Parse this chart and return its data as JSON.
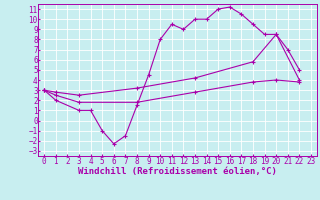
{
  "bg_color": "#c8eef0",
  "line_color": "#aa00aa",
  "xlim": [
    -0.5,
    23.5
  ],
  "ylim": [
    -3.5,
    11.5
  ],
  "xticks": [
    0,
    1,
    2,
    3,
    4,
    5,
    6,
    7,
    8,
    9,
    10,
    11,
    12,
    13,
    14,
    15,
    16,
    17,
    18,
    19,
    20,
    21,
    22,
    23
  ],
  "yticks": [
    -3,
    -2,
    -1,
    0,
    1,
    2,
    3,
    4,
    5,
    6,
    7,
    8,
    9,
    10,
    11
  ],
  "line1_x": [
    0,
    1,
    3,
    4,
    5,
    6,
    7,
    8,
    9,
    10,
    11,
    12,
    13,
    14,
    15,
    16,
    17,
    18,
    19,
    20,
    21,
    22
  ],
  "line1_y": [
    3,
    2,
    1,
    1,
    -1,
    -2.3,
    -1.5,
    1.5,
    4.5,
    8,
    9.5,
    9,
    10,
    10,
    11,
    11.2,
    10.5,
    9.5,
    8.5,
    8.5,
    7,
    5
  ],
  "line2_x": [
    0,
    1,
    3,
    8,
    13,
    18,
    20,
    22
  ],
  "line2_y": [
    3,
    2.8,
    2.5,
    3.2,
    4.2,
    5.8,
    8.5,
    4
  ],
  "line3_x": [
    0,
    1,
    3,
    8,
    13,
    18,
    20,
    22
  ],
  "line3_y": [
    3,
    2.5,
    1.8,
    1.8,
    2.8,
    3.8,
    4.0,
    3.8
  ],
  "xlabel": "Windchill (Refroidissement éolien,°C)",
  "tick_fontsize": 5.5,
  "label_fontsize": 6.5
}
